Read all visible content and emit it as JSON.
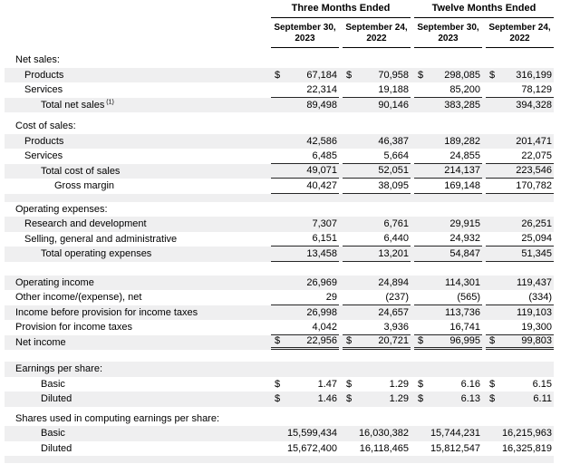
{
  "table": {
    "dollar_sign": "$",
    "colors": {
      "stripe": "#efeff0",
      "rule": "#262626",
      "header_rule": "#000000",
      "text": "#000000",
      "background": "#ffffff"
    },
    "groups": [
      "Three Months Ended",
      "Twelve Months Ended"
    ],
    "column_headers": [
      {
        "line1": "September 30,",
        "line2": "2023"
      },
      {
        "line1": "September 24,",
        "line2": "2022"
      },
      {
        "line1": "September 30,",
        "line2": "2023"
      },
      {
        "line1": "September 24,",
        "line2": "2022"
      }
    ],
    "rows": [
      {
        "type": "section",
        "label": "Net sales:",
        "indent": 0,
        "shaded": false
      },
      {
        "type": "data",
        "label": "Products",
        "indent": 1,
        "shaded": true,
        "dollar": true,
        "values": [
          "67,184",
          "70,958",
          "298,085",
          "316,199"
        ]
      },
      {
        "type": "data",
        "label": "Services",
        "indent": 1,
        "shaded": false,
        "rule": "single",
        "values": [
          "22,314",
          "19,188",
          "85,200",
          "78,129"
        ]
      },
      {
        "type": "data",
        "label": "Total net sales",
        "footnote": "(1)",
        "indent": 2,
        "shaded": true,
        "values": [
          "89,498",
          "90,146",
          "383,285",
          "394,328"
        ]
      },
      {
        "type": "spacer",
        "height": 7,
        "shaded": false
      },
      {
        "type": "section",
        "label": "Cost of sales:",
        "indent": 0,
        "shaded": false
      },
      {
        "type": "data",
        "label": "Products",
        "indent": 1,
        "shaded": true,
        "values": [
          "42,586",
          "46,387",
          "189,282",
          "201,471"
        ]
      },
      {
        "type": "data",
        "label": "Services",
        "indent": 1,
        "shaded": false,
        "rule": "single",
        "values": [
          "6,485",
          "5,664",
          "24,855",
          "22,075"
        ]
      },
      {
        "type": "data",
        "label": "Total cost of sales",
        "indent": 2,
        "shaded": true,
        "rule": "single",
        "values": [
          "49,071",
          "52,051",
          "214,137",
          "223,546"
        ]
      },
      {
        "type": "data",
        "label": "Gross margin",
        "indent": 3,
        "shaded": false,
        "rule": "single",
        "values": [
          "40,427",
          "38,095",
          "169,148",
          "170,782"
        ]
      },
      {
        "type": "spacer",
        "height": 9,
        "shaded": true
      },
      {
        "type": "section",
        "label": "Operating expenses:",
        "indent": 0,
        "shaded": false
      },
      {
        "type": "data",
        "label": "Research and development",
        "indent": 1,
        "shaded": true,
        "values": [
          "7,307",
          "6,761",
          "29,915",
          "26,251"
        ]
      },
      {
        "type": "data",
        "label": "Selling, general and administrative",
        "indent": 1,
        "shaded": false,
        "rule": "single",
        "values": [
          "6,151",
          "6,440",
          "24,932",
          "25,094"
        ]
      },
      {
        "type": "data",
        "label": "Total operating expenses",
        "indent": 2,
        "shaded": true,
        "rule": "single",
        "values": [
          "13,458",
          "13,201",
          "54,847",
          "51,345"
        ]
      },
      {
        "type": "spacer",
        "height": 15,
        "shaded": false
      },
      {
        "type": "data",
        "label": "Operating income",
        "indent": 0,
        "shaded": true,
        "values": [
          "26,969",
          "24,894",
          "114,301",
          "119,437"
        ]
      },
      {
        "type": "data",
        "label": "Other income/(expense), net",
        "indent": 0,
        "shaded": false,
        "rule": "single",
        "values": [
          "29",
          "(237)",
          "(565)",
          "(334)"
        ]
      },
      {
        "type": "data",
        "label": "Income before provision for income taxes",
        "indent": 0,
        "shaded": true,
        "values": [
          "26,998",
          "24,657",
          "113,736",
          "119,103"
        ]
      },
      {
        "type": "data",
        "label": "Provision for income taxes",
        "indent": 0,
        "shaded": false,
        "rule": "single",
        "values": [
          "4,042",
          "3,936",
          "16,741",
          "19,300"
        ]
      },
      {
        "type": "data",
        "label": "Net income",
        "indent": 0,
        "shaded": true,
        "dollar": true,
        "rule": "double",
        "values": [
          "22,956",
          "20,721",
          "96,995",
          "99,803"
        ]
      },
      {
        "type": "spacer",
        "height": 13,
        "shaded": false
      },
      {
        "type": "section",
        "label": "Earnings per share:",
        "indent": 0,
        "shaded": true
      },
      {
        "type": "data",
        "label": "Basic",
        "indent": 2,
        "shaded": false,
        "dollar": true,
        "values": [
          "1.47",
          "1.29",
          "6.16",
          "6.15"
        ]
      },
      {
        "type": "data",
        "label": "Diluted",
        "indent": 2,
        "shaded": true,
        "dollar": true,
        "values": [
          "1.46",
          "1.29",
          "6.13",
          "6.11"
        ]
      },
      {
        "type": "spacer",
        "height": 5,
        "shaded": false
      },
      {
        "type": "section",
        "label": "Shares used in computing earnings per share:",
        "indent": 0,
        "shaded": false
      },
      {
        "type": "data",
        "label": "Basic",
        "indent": 2,
        "shaded": true,
        "values": [
          "15,599,434",
          "16,030,382",
          "15,744,231",
          "16,215,963"
        ]
      },
      {
        "type": "data",
        "label": "Diluted",
        "indent": 2,
        "shaded": false,
        "values": [
          "15,672,400",
          "16,118,465",
          "15,812,547",
          "16,325,819"
        ]
      },
      {
        "type": "spacer",
        "height": 8,
        "shaded": true
      }
    ]
  }
}
